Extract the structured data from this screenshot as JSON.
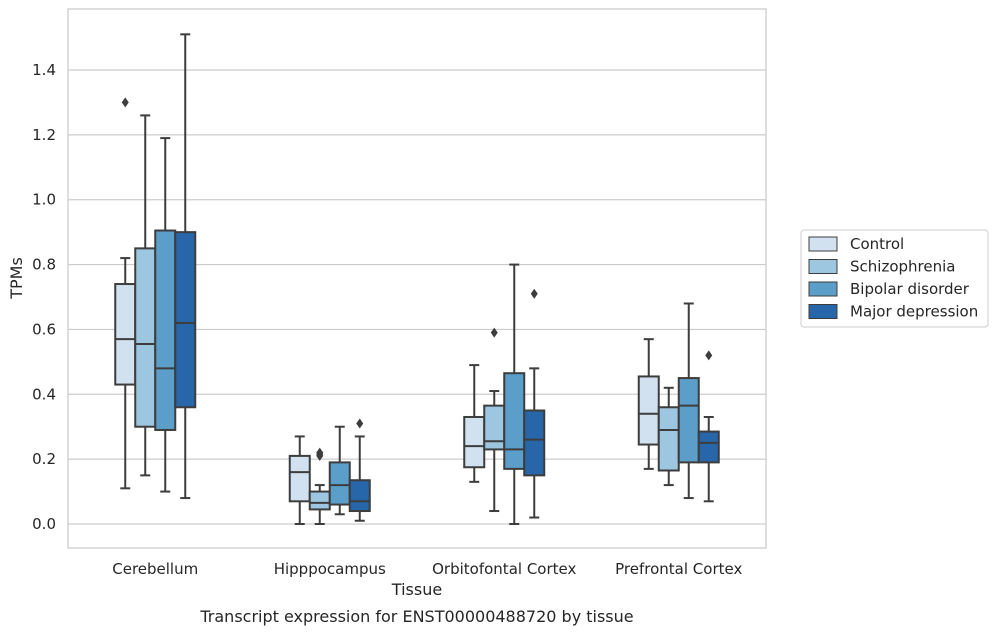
{
  "chart_data": {
    "type": "box",
    "categories": [
      "Cerebellum",
      "Hipppocampus",
      "Orbitofontal Cortex",
      "Prefrontal Cortex"
    ],
    "xlabel": "Tissue",
    "ylabel": "TPMs",
    "caption": "Transcript expression for ENST00000488720 by tissue",
    "ylim": [
      -0.07,
      1.53
    ],
    "yticks": [
      0.0,
      0.2,
      0.4,
      0.6,
      0.8,
      1.0,
      1.2,
      1.4
    ],
    "grid": "horizontal",
    "legend_position": "right",
    "series": [
      {
        "name": "Control",
        "color": "#d1e1f0",
        "boxes": [
          {
            "whisker_low": 0.11,
            "q1": 0.43,
            "median": 0.57,
            "q3": 0.74,
            "whisker_high": 0.82,
            "outliers": [
              1.3
            ]
          },
          {
            "whisker_low": 0.0,
            "q1": 0.07,
            "median": 0.16,
            "q3": 0.21,
            "whisker_high": 0.27,
            "outliers": []
          },
          {
            "whisker_low": 0.13,
            "q1": 0.175,
            "median": 0.24,
            "q3": 0.33,
            "whisker_high": 0.49,
            "outliers": []
          },
          {
            "whisker_low": 0.17,
            "q1": 0.245,
            "median": 0.34,
            "q3": 0.455,
            "whisker_high": 0.57,
            "outliers": []
          }
        ]
      },
      {
        "name": "Schizophrenia",
        "color": "#9dc7e0",
        "boxes": [
          {
            "whisker_low": 0.15,
            "q1": 0.3,
            "median": 0.555,
            "q3": 0.85,
            "whisker_high": 1.26,
            "outliers": []
          },
          {
            "whisker_low": 0.0,
            "q1": 0.045,
            "median": 0.065,
            "q3": 0.1,
            "whisker_high": 0.12,
            "outliers": [
              0.21,
              0.215,
              0.22
            ]
          },
          {
            "whisker_low": 0.04,
            "q1": 0.23,
            "median": 0.255,
            "q3": 0.365,
            "whisker_high": 0.41,
            "outliers": [
              0.59
            ]
          },
          {
            "whisker_low": 0.12,
            "q1": 0.165,
            "median": 0.29,
            "q3": 0.36,
            "whisker_high": 0.42,
            "outliers": []
          }
        ]
      },
      {
        "name": "Bipolar disorder",
        "color": "#5b9ec9",
        "boxes": [
          {
            "whisker_low": 0.1,
            "q1": 0.29,
            "median": 0.48,
            "q3": 0.905,
            "whisker_high": 1.19,
            "outliers": []
          },
          {
            "whisker_low": 0.03,
            "q1": 0.06,
            "median": 0.12,
            "q3": 0.19,
            "whisker_high": 0.3,
            "outliers": []
          },
          {
            "whisker_low": 0.0,
            "q1": 0.17,
            "median": 0.23,
            "q3": 0.465,
            "whisker_high": 0.8,
            "outliers": []
          },
          {
            "whisker_low": 0.08,
            "q1": 0.19,
            "median": 0.365,
            "q3": 0.45,
            "whisker_high": 0.68,
            "outliers": []
          }
        ]
      },
      {
        "name": "Major depression",
        "color": "#2766a8",
        "boxes": [
          {
            "whisker_low": 0.08,
            "q1": 0.36,
            "median": 0.62,
            "q3": 0.9,
            "whisker_high": 1.51,
            "outliers": []
          },
          {
            "whisker_low": 0.01,
            "q1": 0.04,
            "median": 0.07,
            "q3": 0.135,
            "whisker_high": 0.27,
            "outliers": [
              0.31
            ]
          },
          {
            "whisker_low": 0.02,
            "q1": 0.15,
            "median": 0.26,
            "q3": 0.35,
            "whisker_high": 0.48,
            "outliers": [
              0.71
            ]
          },
          {
            "whisker_low": 0.07,
            "q1": 0.19,
            "median": 0.25,
            "q3": 0.285,
            "whisker_high": 0.33,
            "outliers": [
              0.52
            ]
          }
        ]
      }
    ]
  }
}
